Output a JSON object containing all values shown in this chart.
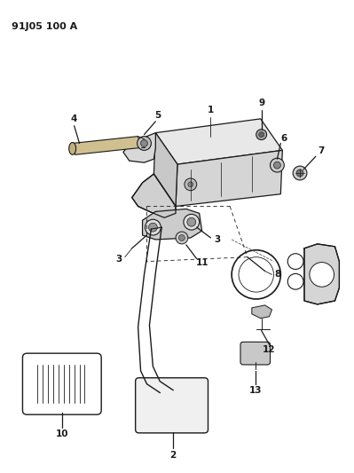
{
  "title": "91J05 100 A",
  "background_color": "#ffffff",
  "line_color": "#1a1a1a",
  "fig_width": 3.99,
  "fig_height": 5.33,
  "dpi": 100
}
